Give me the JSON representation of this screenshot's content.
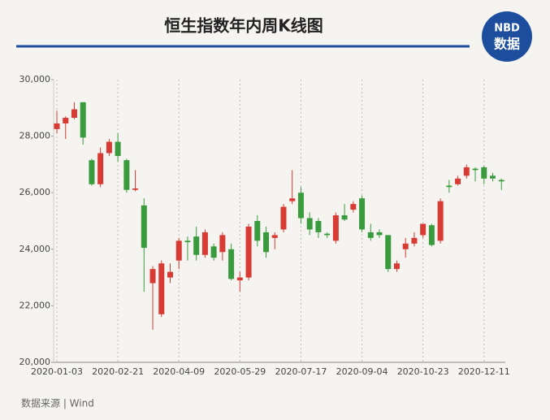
{
  "chart_data": {
    "type": "candlestick",
    "title": "恒生指数年内周K线图",
    "logo": {
      "line1": "NBD",
      "line2": "数据"
    },
    "source": "数据来源 | Wind",
    "categories": [
      "2020-01-03",
      null,
      null,
      null,
      null,
      null,
      null,
      "2020-02-21",
      null,
      null,
      null,
      null,
      null,
      null,
      "2020-04-09",
      null,
      null,
      null,
      null,
      null,
      null,
      "2020-05-29",
      null,
      null,
      null,
      null,
      null,
      null,
      "2020-07-17",
      null,
      null,
      null,
      null,
      null,
      null,
      "2020-09-04",
      null,
      null,
      null,
      null,
      null,
      null,
      "2020-10-23",
      null,
      null,
      null,
      null,
      null,
      null,
      "2020-12-11",
      null,
      null
    ],
    "open": [
      28250,
      28450,
      28650,
      29200,
      27150,
      26300,
      27400,
      27800,
      27150,
      26100,
      25550,
      22800,
      21700,
      23000,
      23600,
      24300,
      24450,
      23800,
      24100,
      23900,
      24000,
      22900,
      23000,
      25000,
      24600,
      24400,
      24700,
      25700,
      26000,
      25100,
      25000,
      24550,
      24300,
      25200,
      25400,
      25800,
      24600,
      24600,
      24500,
      23300,
      24000,
      24200,
      24500,
      24850,
      24300,
      26250,
      26300,
      26600,
      26850,
      26900,
      26600,
      26450
    ],
    "high": [
      28900,
      28700,
      29200,
      29200,
      27200,
      27600,
      27900,
      28100,
      27200,
      26800,
      25800,
      23400,
      23600,
      23500,
      24400,
      24450,
      24800,
      24700,
      24200,
      24600,
      24200,
      23200,
      24900,
      25200,
      24800,
      24600,
      25600,
      26800,
      26200,
      25300,
      25100,
      24600,
      25300,
      25600,
      25700,
      25900,
      24900,
      24700,
      24500,
      23600,
      24400,
      24600,
      24900,
      24900,
      25800,
      26450,
      26600,
      27000,
      26900,
      26950,
      26700,
      26500
    ],
    "low": [
      28100,
      27900,
      28600,
      27700,
      26250,
      26200,
      27300,
      27100,
      26000,
      26050,
      22500,
      21150,
      21600,
      22800,
      23300,
      23600,
      23600,
      23700,
      23600,
      23600,
      22900,
      22500,
      22900,
      24100,
      23700,
      24000,
      24600,
      25600,
      24900,
      24500,
      24400,
      24400,
      24200,
      25000,
      25300,
      24600,
      24300,
      24400,
      23200,
      23200,
      23700,
      24100,
      24400,
      24100,
      24200,
      26000,
      26250,
      26500,
      26400,
      26300,
      26400,
      26100
    ],
    "close": [
      28450,
      28650,
      28950,
      27950,
      26300,
      27400,
      27800,
      27300,
      26100,
      26150,
      24050,
      23300,
      23500,
      23200,
      24300,
      24250,
      23800,
      24600,
      23700,
      24500,
      22950,
      23000,
      24800,
      24300,
      23900,
      24500,
      25500,
      25800,
      25100,
      24700,
      24600,
      24500,
      25200,
      25050,
      25600,
      24700,
      24400,
      24500,
      23300,
      23500,
      24200,
      24400,
      24900,
      24150,
      25700,
      26200,
      26500,
      26900,
      26800,
      26500,
      26500,
      26400
    ],
    "up_color": "#d83a34",
    "down_color": "#3a9b3e",
    "ylim": [
      20000,
      30000
    ],
    "yticks": [
      {
        "value": 20000,
        "label": "20,000"
      },
      {
        "value": 22000,
        "label": "22,000"
      },
      {
        "value": 24000,
        "label": "24,000"
      },
      {
        "value": 26000,
        "label": "26,000"
      },
      {
        "value": 28000,
        "label": "28,000"
      },
      {
        "value": 30000,
        "label": "30,000"
      }
    ],
    "grid": true
  }
}
